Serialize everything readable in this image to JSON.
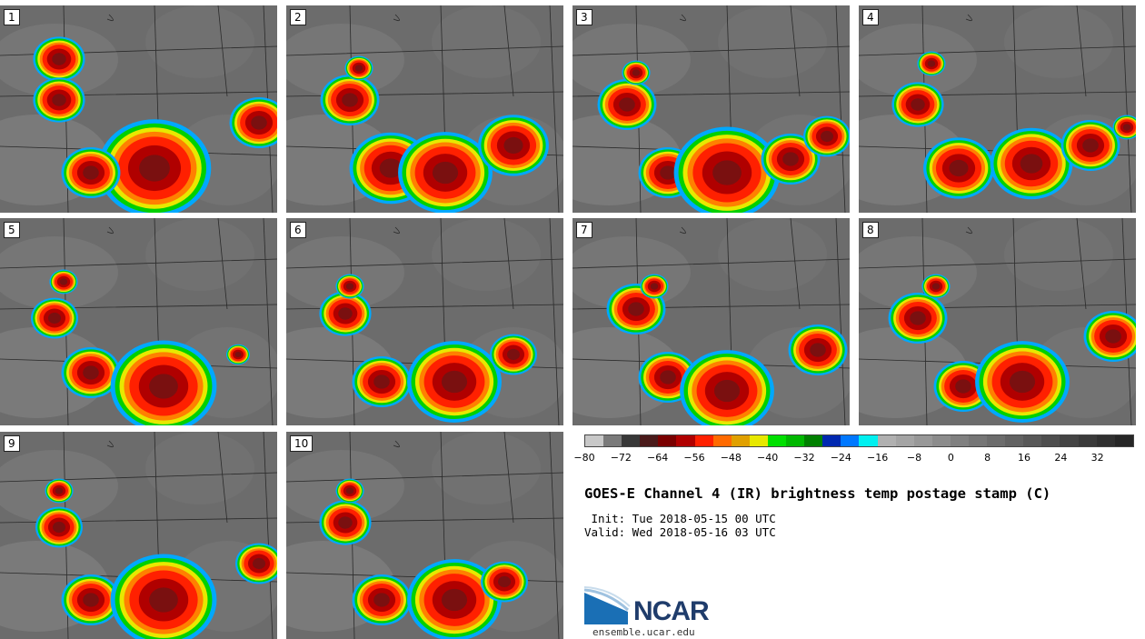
{
  "panels": [
    {
      "label": "1"
    },
    {
      "label": "2"
    },
    {
      "label": "3"
    },
    {
      "label": "4"
    },
    {
      "label": "5"
    },
    {
      "label": "6"
    },
    {
      "label": "7"
    },
    {
      "label": "8"
    },
    {
      "label": "9"
    },
    {
      "label": "10"
    }
  ],
  "colorbar": {
    "ticks": [
      "−80",
      "−72",
      "−64",
      "−56",
      "−48",
      "−40",
      "−32",
      "−24",
      "−16",
      "−8",
      "0",
      "8",
      "16",
      "24",
      "32"
    ],
    "range_min": -80,
    "range_max": 40,
    "colors": [
      "#c8c8c8",
      "#7a7a7a",
      "#383838",
      "#4a1a1a",
      "#7a0000",
      "#b00000",
      "#ff2000",
      "#ff6a00",
      "#e0a000",
      "#e8e800",
      "#00e000",
      "#00b800",
      "#008000",
      "#0028b0",
      "#0078ff",
      "#00f0f0",
      "#b0b0b0",
      "#a4a4a4",
      "#989898",
      "#8c8c8c",
      "#808080",
      "#767676",
      "#6c6c6c",
      "#626262",
      "#585858",
      "#4e4e4e",
      "#444444",
      "#3a3a3a",
      "#303030",
      "#262626"
    ]
  },
  "title": "GOES-E Channel 4 (IR) brightness temp postage stamp (C)",
  "init_line": " Init: Tue 2018-05-15 00 UTC",
  "valid_line": "Valid: Wed 2018-05-16 03 UTC",
  "logo": {
    "text": "NCAR",
    "url": "ensemble.ucar.edu"
  }
}
